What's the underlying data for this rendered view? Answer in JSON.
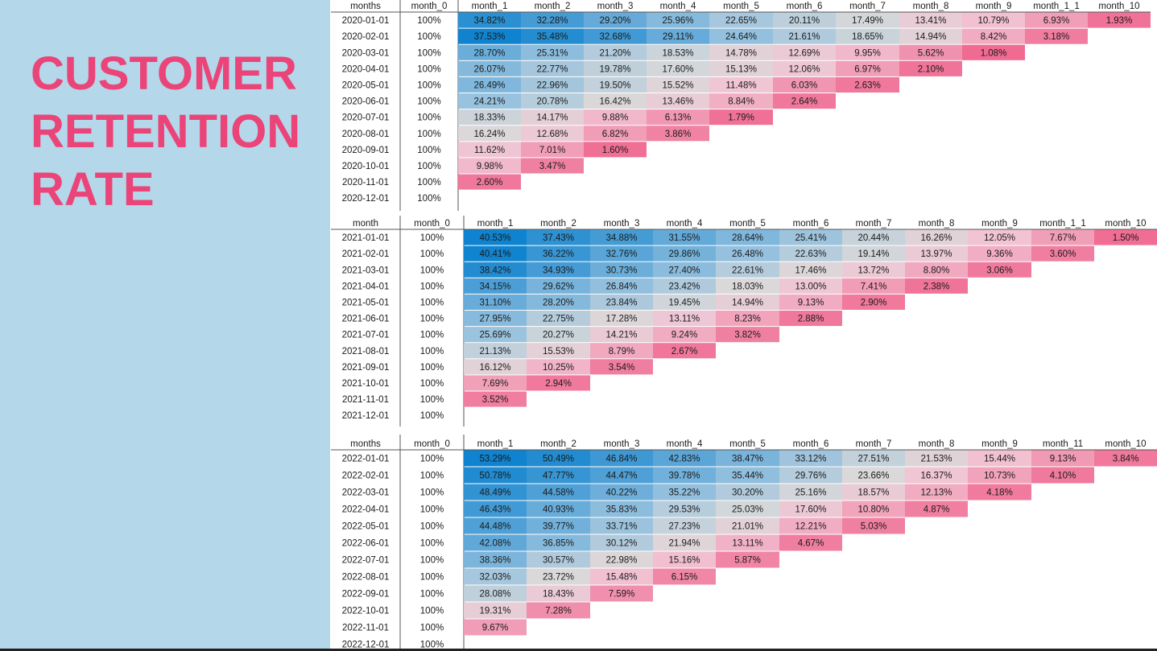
{
  "title_lines": [
    "CUSTOMER",
    "RETENTION",
    "RATE"
  ],
  "colors": {
    "panel_background": "#b4d7ea",
    "title_text": "#ea4479",
    "high_value": "#0f83cf",
    "mid_value": "#d9d9d9",
    "low_value": "#f0618b"
  },
  "chart_data": [
    {
      "type": "heatmap",
      "header": [
        "months",
        "month_0",
        "month_1",
        "month_2",
        "month_3",
        "month_4",
        "month_5",
        "month_6",
        "month_7",
        "month_8",
        "month_9",
        "month_1_1",
        "month_10"
      ],
      "rows": [
        {
          "label": "2020-01-01",
          "month_0": "100%",
          "cells": [
            "34.82%",
            "32.28%",
            "29.20%",
            "25.96%",
            "22.65%",
            "20.11%",
            "17.49%",
            "13.41%",
            "10.79%",
            "6.93%",
            "1.93%"
          ]
        },
        {
          "label": "2020-02-01",
          "month_0": "100%",
          "cells": [
            "37.53%",
            "35.48%",
            "32.68%",
            "29.11%",
            "24.64%",
            "21.61%",
            "18.65%",
            "14.94%",
            "8.42%",
            "3.18%"
          ]
        },
        {
          "label": "2020-03-01",
          "month_0": "100%",
          "cells": [
            "28.70%",
            "25.31%",
            "21.20%",
            "18.53%",
            "14.78%",
            "12.69%",
            "9.95%",
            "5.62%",
            "1.08%"
          ]
        },
        {
          "label": "2020-04-01",
          "month_0": "100%",
          "cells": [
            "26.07%",
            "22.77%",
            "19.78%",
            "17.60%",
            "15.13%",
            "12.06%",
            "6.97%",
            "2.10%"
          ]
        },
        {
          "label": "2020-05-01",
          "month_0": "100%",
          "cells": [
            "26.49%",
            "22.96%",
            "19.50%",
            "15.52%",
            "11.48%",
            "6.03%",
            "2.63%"
          ]
        },
        {
          "label": "2020-06-01",
          "month_0": "100%",
          "cells": [
            "24.21%",
            "20.78%",
            "16.42%",
            "13.46%",
            "8.84%",
            "2.64%"
          ]
        },
        {
          "label": "2020-07-01",
          "month_0": "100%",
          "cells": [
            "18.33%",
            "14.17%",
            "9.88%",
            "6.13%",
            "1.79%"
          ]
        },
        {
          "label": "2020-08-01",
          "month_0": "100%",
          "cells": [
            "16.24%",
            "12.68%",
            "6.82%",
            "3.86%"
          ]
        },
        {
          "label": "2020-09-01",
          "month_0": "100%",
          "cells": [
            "11.62%",
            "7.01%",
            "1.60%"
          ]
        },
        {
          "label": "2020-10-01",
          "month_0": "100%",
          "cells": [
            "9.98%",
            "3.47%"
          ]
        },
        {
          "label": "2020-11-01",
          "month_0": "100%",
          "cells": [
            "2.60%"
          ]
        },
        {
          "label": "2020-12-01",
          "month_0": "100%",
          "cells": []
        }
      ]
    },
    {
      "type": "heatmap",
      "header": [
        "month",
        "month_0",
        "month_1",
        "month_2",
        "month_3",
        "month_4",
        "month_5",
        "month_6",
        "month_7",
        "month_8",
        "month_9",
        "month_1_1",
        "month_10"
      ],
      "rows": [
        {
          "label": "2021-01-01",
          "month_0": "100%",
          "cells": [
            "40.53%",
            "37.43%",
            "34.88%",
            "31.55%",
            "28.64%",
            "25.41%",
            "20.44%",
            "16.26%",
            "12.05%",
            "7.67%",
            "1.50%"
          ]
        },
        {
          "label": "2021-02-01",
          "month_0": "100%",
          "cells": [
            "40.41%",
            "36.22%",
            "32.76%",
            "29.86%",
            "26.48%",
            "22.63%",
            "19.14%",
            "13.97%",
            "9.36%",
            "3.60%"
          ]
        },
        {
          "label": "2021-03-01",
          "month_0": "100%",
          "cells": [
            "38.42%",
            "34.93%",
            "30.73%",
            "27.40%",
            "22.61%",
            "17.46%",
            "13.72%",
            "8.80%",
            "3.06%"
          ]
        },
        {
          "label": "2021-04-01",
          "month_0": "100%",
          "cells": [
            "34.15%",
            "29.62%",
            "26.84%",
            "23.42%",
            "18.03%",
            "13.00%",
            "7.41%",
            "2.38%"
          ]
        },
        {
          "label": "2021-05-01",
          "month_0": "100%",
          "cells": [
            "31.10%",
            "28.20%",
            "23.84%",
            "19.45%",
            "14.94%",
            "9.13%",
            "2.90%"
          ]
        },
        {
          "label": "2021-06-01",
          "month_0": "100%",
          "cells": [
            "27.95%",
            "22.75%",
            "17.28%",
            "13.11%",
            "8.23%",
            "2.88%"
          ]
        },
        {
          "label": "2021-07-01",
          "month_0": "100%",
          "cells": [
            "25.69%",
            "20.27%",
            "14.21%",
            "9.24%",
            "3.82%"
          ]
        },
        {
          "label": "2021-08-01",
          "month_0": "100%",
          "cells": [
            "21.13%",
            "15.53%",
            "8.79%",
            "2.67%"
          ]
        },
        {
          "label": "2021-09-01",
          "month_0": "100%",
          "cells": [
            "16.12%",
            "10.25%",
            "3.54%"
          ]
        },
        {
          "label": "2021-10-01",
          "month_0": "100%",
          "cells": [
            "7.69%",
            "2.94%"
          ]
        },
        {
          "label": "2021-11-01",
          "month_0": "100%",
          "cells": [
            "3.52%"
          ]
        },
        {
          "label": "2021-12-01",
          "month_0": "100%",
          "cells": []
        }
      ]
    },
    {
      "type": "heatmap",
      "header": [
        "months",
        "month_0",
        "month_1",
        "month_2",
        "month_3",
        "month_4",
        "month_5",
        "month_6",
        "month_7",
        "month_8",
        "month_9",
        "month_11",
        "month_10"
      ],
      "rows": [
        {
          "label": "2022-01-01",
          "month_0": "100%",
          "cells": [
            "53.29%",
            "50.49%",
            "46.84%",
            "42.83%",
            "38.47%",
            "33.12%",
            "27.51%",
            "21.53%",
            "15.44%",
            "9.13%",
            "3.84%"
          ]
        },
        {
          "label": "2022-02-01",
          "month_0": "100%",
          "cells": [
            "50.78%",
            "47.77%",
            "44.47%",
            "39.78%",
            "35.44%",
            "29.76%",
            "23.66%",
            "16.37%",
            "10.73%",
            "4.10%"
          ]
        },
        {
          "label": "2022-03-01",
          "month_0": "100%",
          "cells": [
            "48.49%",
            "44.58%",
            "40.22%",
            "35.22%",
            "30.20%",
            "25.16%",
            "18.57%",
            "12.13%",
            "4.18%"
          ]
        },
        {
          "label": "2022-04-01",
          "month_0": "100%",
          "cells": [
            "46.43%",
            "40.93%",
            "35.83%",
            "29.53%",
            "25.03%",
            "17.60%",
            "10.80%",
            "4.87%"
          ]
        },
        {
          "label": "2022-05-01",
          "month_0": "100%",
          "cells": [
            "44.48%",
            "39.77%",
            "33.71%",
            "27.23%",
            "21.01%",
            "12.21%",
            "5.03%"
          ]
        },
        {
          "label": "2022-06-01",
          "month_0": "100%",
          "cells": [
            "42.08%",
            "36.85%",
            "30.12%",
            "21.94%",
            "13.11%",
            "4.67%"
          ]
        },
        {
          "label": "2022-07-01",
          "month_0": "100%",
          "cells": [
            "38.36%",
            "30.57%",
            "22.98%",
            "15.16%",
            "5.87%"
          ]
        },
        {
          "label": "2022-08-01",
          "month_0": "100%",
          "cells": [
            "32.03%",
            "23.72%",
            "15.48%",
            "6.15%"
          ]
        },
        {
          "label": "2022-09-01",
          "month_0": "100%",
          "cells": [
            "28.08%",
            "18.43%",
            "7.59%"
          ]
        },
        {
          "label": "2022-10-01",
          "month_0": "100%",
          "cells": [
            "19.31%",
            "7.28%"
          ]
        },
        {
          "label": "2022-11-01",
          "month_0": "100%",
          "cells": [
            "9.67%"
          ]
        },
        {
          "label": "2022-12-01",
          "month_0": "100%",
          "cells": []
        }
      ]
    }
  ]
}
